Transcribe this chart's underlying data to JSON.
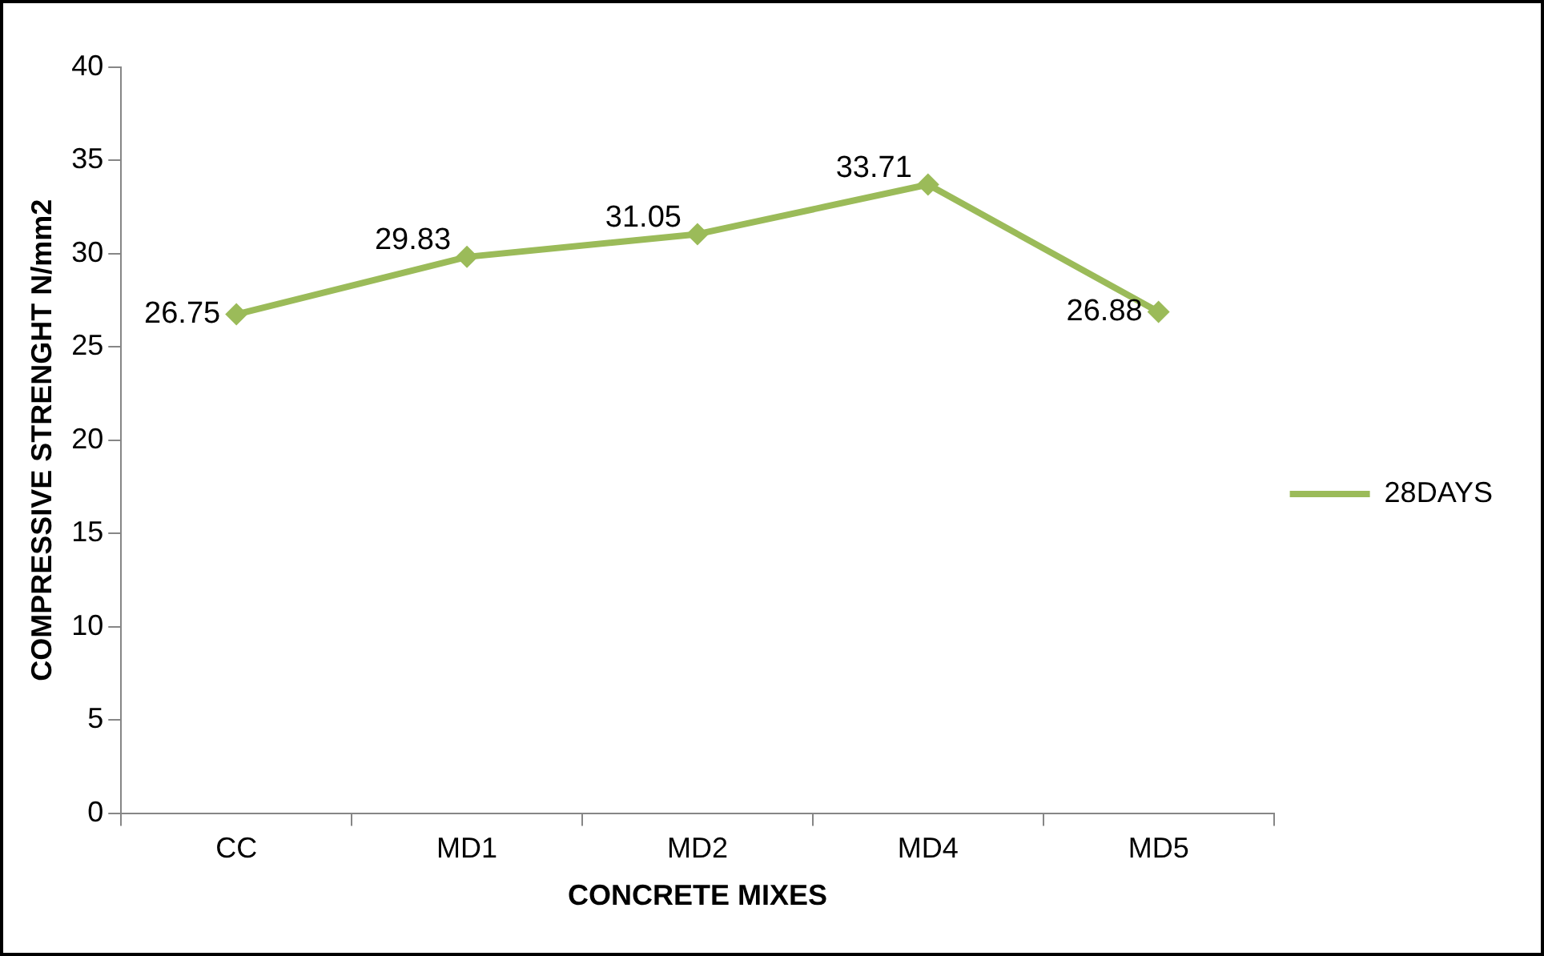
{
  "chart_data": {
    "type": "line",
    "xlabel": "CONCRETE MIXES",
    "ylabel": "COMPRESSIVE STRENGHT N/mm2",
    "categories": [
      "CC",
      "MD1",
      "MD2",
      "MD4",
      "MD5"
    ],
    "series": [
      {
        "name": "28DAYS",
        "color": "#9bbb59",
        "values": [
          26.75,
          29.83,
          31.05,
          33.71,
          26.88
        ]
      }
    ],
    "ylim": [
      0,
      40
    ],
    "yticks": [
      0,
      5,
      10,
      15,
      20,
      25,
      30,
      35,
      40
    ],
    "grid": false,
    "legend": "right",
    "marker": "diamond",
    "line_style": "solid",
    "data_labels": true
  }
}
